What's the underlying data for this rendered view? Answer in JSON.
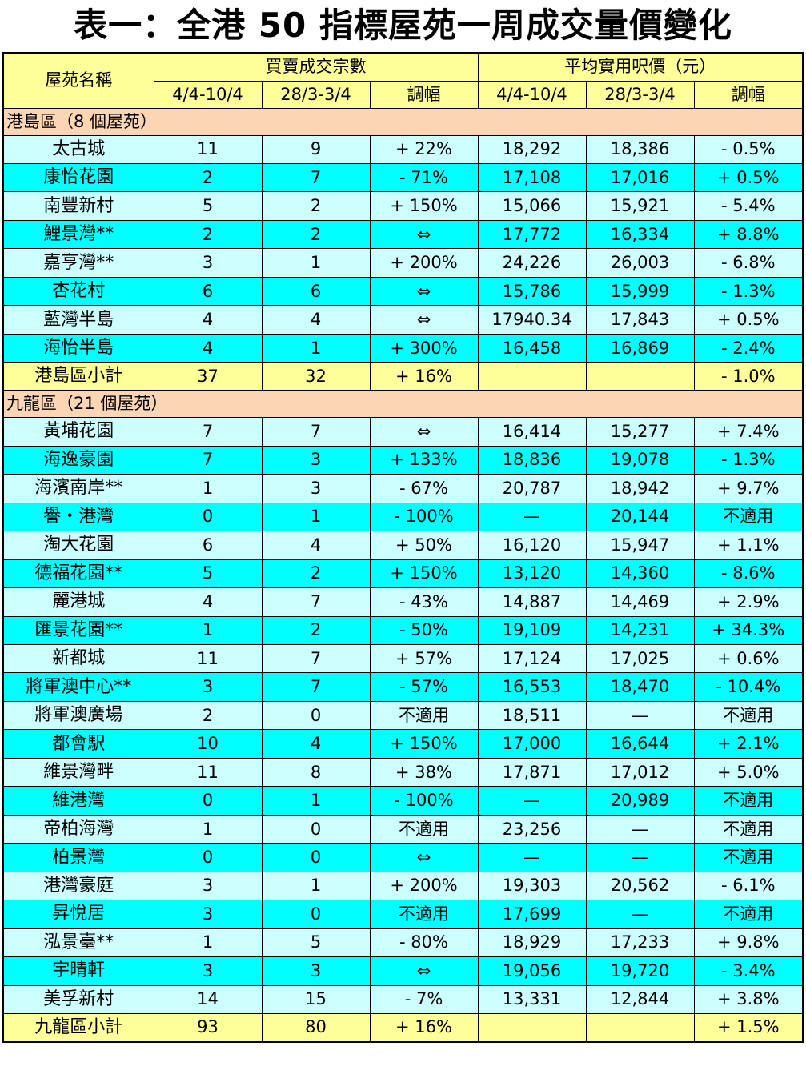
{
  "title": "表一：全港 50 指標屋苑一周成交量價變化",
  "header": {
    "estate_name": "屋苑名稱",
    "group_volume": "買賣成交宗數",
    "group_price": "平均實用呎價（元）",
    "week_current": "4/4-10/4",
    "week_previous": "28/3-3/4",
    "change": "調幅"
  },
  "sections": [
    {
      "label": "港島區（8 個屋苑）",
      "rows": [
        {
          "name": "太古城",
          "vol_cur": "11",
          "vol_prev": "9",
          "vol_chg": "+ 22%",
          "price_cur": "18,292",
          "price_prev": "18,386",
          "price_chg": "- 0.5%"
        },
        {
          "name": "康怡花園",
          "vol_cur": "2",
          "vol_prev": "7",
          "vol_chg": "- 71%",
          "price_cur": "17,108",
          "price_prev": "17,016",
          "price_chg": "+ 0.5%"
        },
        {
          "name": "南豐新村",
          "vol_cur": "5",
          "vol_prev": "2",
          "vol_chg": "+ 150%",
          "price_cur": "15,066",
          "price_prev": "15,921",
          "price_chg": "- 5.4%"
        },
        {
          "name": "鯉景灣**",
          "vol_cur": "2",
          "vol_prev": "2",
          "vol_chg": "⇔",
          "price_cur": "17,772",
          "price_prev": "16,334",
          "price_chg": "+ 8.8%"
        },
        {
          "name": "嘉亨灣**",
          "vol_cur": "3",
          "vol_prev": "1",
          "vol_chg": "+ 200%",
          "price_cur": "24,226",
          "price_prev": "26,003",
          "price_chg": "- 6.8%"
        },
        {
          "name": "杏花村",
          "vol_cur": "6",
          "vol_prev": "6",
          "vol_chg": "⇔",
          "price_cur": "15,786",
          "price_prev": "15,999",
          "price_chg": "- 1.3%"
        },
        {
          "name": "藍灣半島",
          "vol_cur": "4",
          "vol_prev": "4",
          "vol_chg": "⇔",
          "price_cur": "17940.34",
          "price_prev": "17,843",
          "price_chg": "+ 0.5%"
        },
        {
          "name": "海怡半島",
          "vol_cur": "4",
          "vol_prev": "1",
          "vol_chg": "+ 300%",
          "price_cur": "16,458",
          "price_prev": "16,869",
          "price_chg": "- 2.4%"
        }
      ],
      "subtotal": {
        "name": "港島區小計",
        "vol_cur": "37",
        "vol_prev": "32",
        "vol_chg": "+ 16%",
        "price_cur": "",
        "price_prev": "",
        "price_chg": "- 1.0%"
      }
    },
    {
      "label": "九龍區（21 個屋苑）",
      "rows": [
        {
          "name": "黃埔花園",
          "vol_cur": "7",
          "vol_prev": "7",
          "vol_chg": "⇔",
          "price_cur": "16,414",
          "price_prev": "15,277",
          "price_chg": "+ 7.4%"
        },
        {
          "name": "海逸豪園",
          "vol_cur": "7",
          "vol_prev": "3",
          "vol_chg": "+ 133%",
          "price_cur": "18,836",
          "price_prev": "19,078",
          "price_chg": "- 1.3%"
        },
        {
          "name": "海濱南岸**",
          "vol_cur": "1",
          "vol_prev": "3",
          "vol_chg": "- 67%",
          "price_cur": "20,787",
          "price_prev": "18,942",
          "price_chg": "+ 9.7%"
        },
        {
          "name": "譽・港灣",
          "vol_cur": "0",
          "vol_prev": "1",
          "vol_chg": "- 100%",
          "price_cur": "—",
          "price_prev": "20,144",
          "price_chg": "不適用"
        },
        {
          "name": "淘大花園",
          "vol_cur": "6",
          "vol_prev": "4",
          "vol_chg": "+ 50%",
          "price_cur": "16,120",
          "price_prev": "15,947",
          "price_chg": "+ 1.1%"
        },
        {
          "name": "德福花園**",
          "vol_cur": "5",
          "vol_prev": "2",
          "vol_chg": "+ 150%",
          "price_cur": "13,120",
          "price_prev": "14,360",
          "price_chg": "- 8.6%"
        },
        {
          "name": "麗港城",
          "vol_cur": "4",
          "vol_prev": "7",
          "vol_chg": "- 43%",
          "price_cur": "14,887",
          "price_prev": "14,469",
          "price_chg": "+ 2.9%"
        },
        {
          "name": "匯景花園**",
          "vol_cur": "1",
          "vol_prev": "2",
          "vol_chg": "- 50%",
          "price_cur": "19,109",
          "price_prev": "14,231",
          "price_chg": "+ 34.3%"
        },
        {
          "name": "新都城",
          "vol_cur": "11",
          "vol_prev": "7",
          "vol_chg": "+ 57%",
          "price_cur": "17,124",
          "price_prev": "17,025",
          "price_chg": "+ 0.6%"
        },
        {
          "name": "將軍澳中心**",
          "vol_cur": "3",
          "vol_prev": "7",
          "vol_chg": "- 57%",
          "price_cur": "16,553",
          "price_prev": "18,470",
          "price_chg": "- 10.4%"
        },
        {
          "name": "將軍澳廣場",
          "vol_cur": "2",
          "vol_prev": "0",
          "vol_chg": "不適用",
          "price_cur": "18,511",
          "price_prev": "—",
          "price_chg": "不適用"
        },
        {
          "name": "都會駅",
          "vol_cur": "10",
          "vol_prev": "4",
          "vol_chg": "+ 150%",
          "price_cur": "17,000",
          "price_prev": "16,644",
          "price_chg": "+ 2.1%"
        },
        {
          "name": "維景灣畔",
          "vol_cur": "11",
          "vol_prev": "8",
          "vol_chg": "+ 38%",
          "price_cur": "17,871",
          "price_prev": "17,012",
          "price_chg": "+ 5.0%"
        },
        {
          "name": "維港灣",
          "vol_cur": "0",
          "vol_prev": "1",
          "vol_chg": "- 100%",
          "price_cur": "—",
          "price_prev": "20,989",
          "price_chg": "不適用"
        },
        {
          "name": "帝柏海灣",
          "vol_cur": "1",
          "vol_prev": "0",
          "vol_chg": "不適用",
          "price_cur": "23,256",
          "price_prev": "—",
          "price_chg": "不適用"
        },
        {
          "name": "柏景灣",
          "vol_cur": "0",
          "vol_prev": "0",
          "vol_chg": "⇔",
          "price_cur": "—",
          "price_prev": "—",
          "price_chg": "不適用"
        },
        {
          "name": "港灣豪庭",
          "vol_cur": "3",
          "vol_prev": "1",
          "vol_chg": "+ 200%",
          "price_cur": "19,303",
          "price_prev": "20,562",
          "price_chg": "- 6.1%"
        },
        {
          "name": "昇悅居",
          "vol_cur": "3",
          "vol_prev": "0",
          "vol_chg": "不適用",
          "price_cur": "17,699",
          "price_prev": "—",
          "price_chg": "不適用"
        },
        {
          "name": "泓景臺**",
          "vol_cur": "1",
          "vol_prev": "5",
          "vol_chg": "- 80%",
          "price_cur": "18,929",
          "price_prev": "17,233",
          "price_chg": "+ 9.8%"
        },
        {
          "name": "宇晴軒",
          "vol_cur": "3",
          "vol_prev": "3",
          "vol_chg": "⇔",
          "price_cur": "19,056",
          "price_prev": "19,720",
          "price_chg": "- 3.4%"
        },
        {
          "name": "美孚新村",
          "vol_cur": "14",
          "vol_prev": "15",
          "vol_chg": "- 7%",
          "price_cur": "13,331",
          "price_prev": "12,844",
          "price_chg": "+ 3.8%"
        }
      ],
      "subtotal": {
        "name": "九龍區小計",
        "vol_cur": "93",
        "vol_prev": "80",
        "vol_chg": "+ 16%",
        "price_cur": "",
        "price_prev": "",
        "price_chg": "+ 1.5%"
      }
    }
  ]
}
